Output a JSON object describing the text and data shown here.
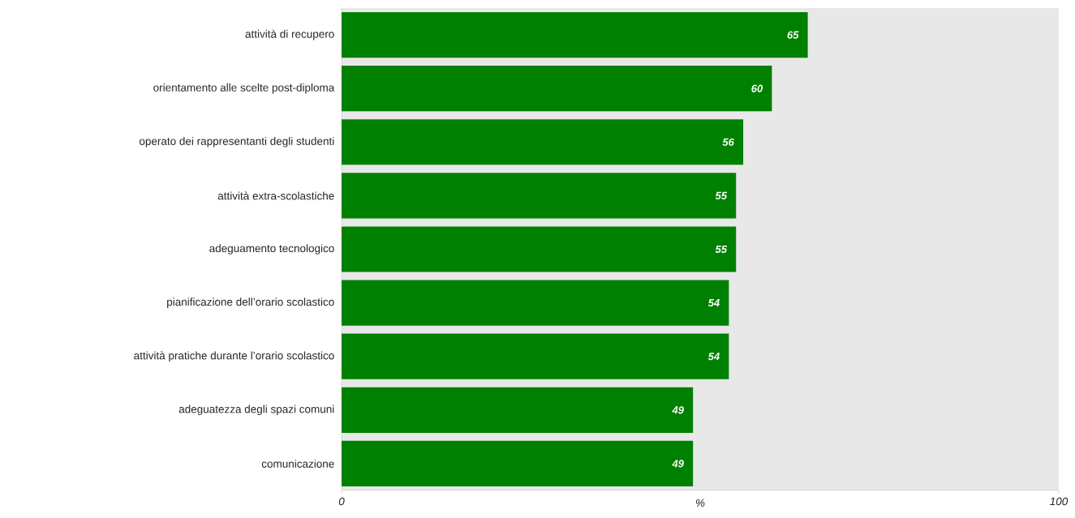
{
  "chart_data": {
    "type": "bar",
    "orientation": "horizontal",
    "xlabel": "%",
    "categories": [
      "attività di recupero",
      "orientamento alle scelte post-diploma",
      "operato dei rappresentanti degli studenti",
      "attività extra-scolastiche",
      "adeguamento tecnologico",
      "pianificazione dell’orario scolastico",
      "attività pratiche durante l’orario scolastico",
      "adeguatezza degli spazi comuni",
      "comunicazione"
    ],
    "values": [
      65,
      60,
      56,
      55,
      55,
      54,
      54,
      49,
      49
    ],
    "color": "#008000",
    "xlim": [
      0,
      100
    ],
    "xticks": [
      0,
      100
    ],
    "data_labels": true
  }
}
